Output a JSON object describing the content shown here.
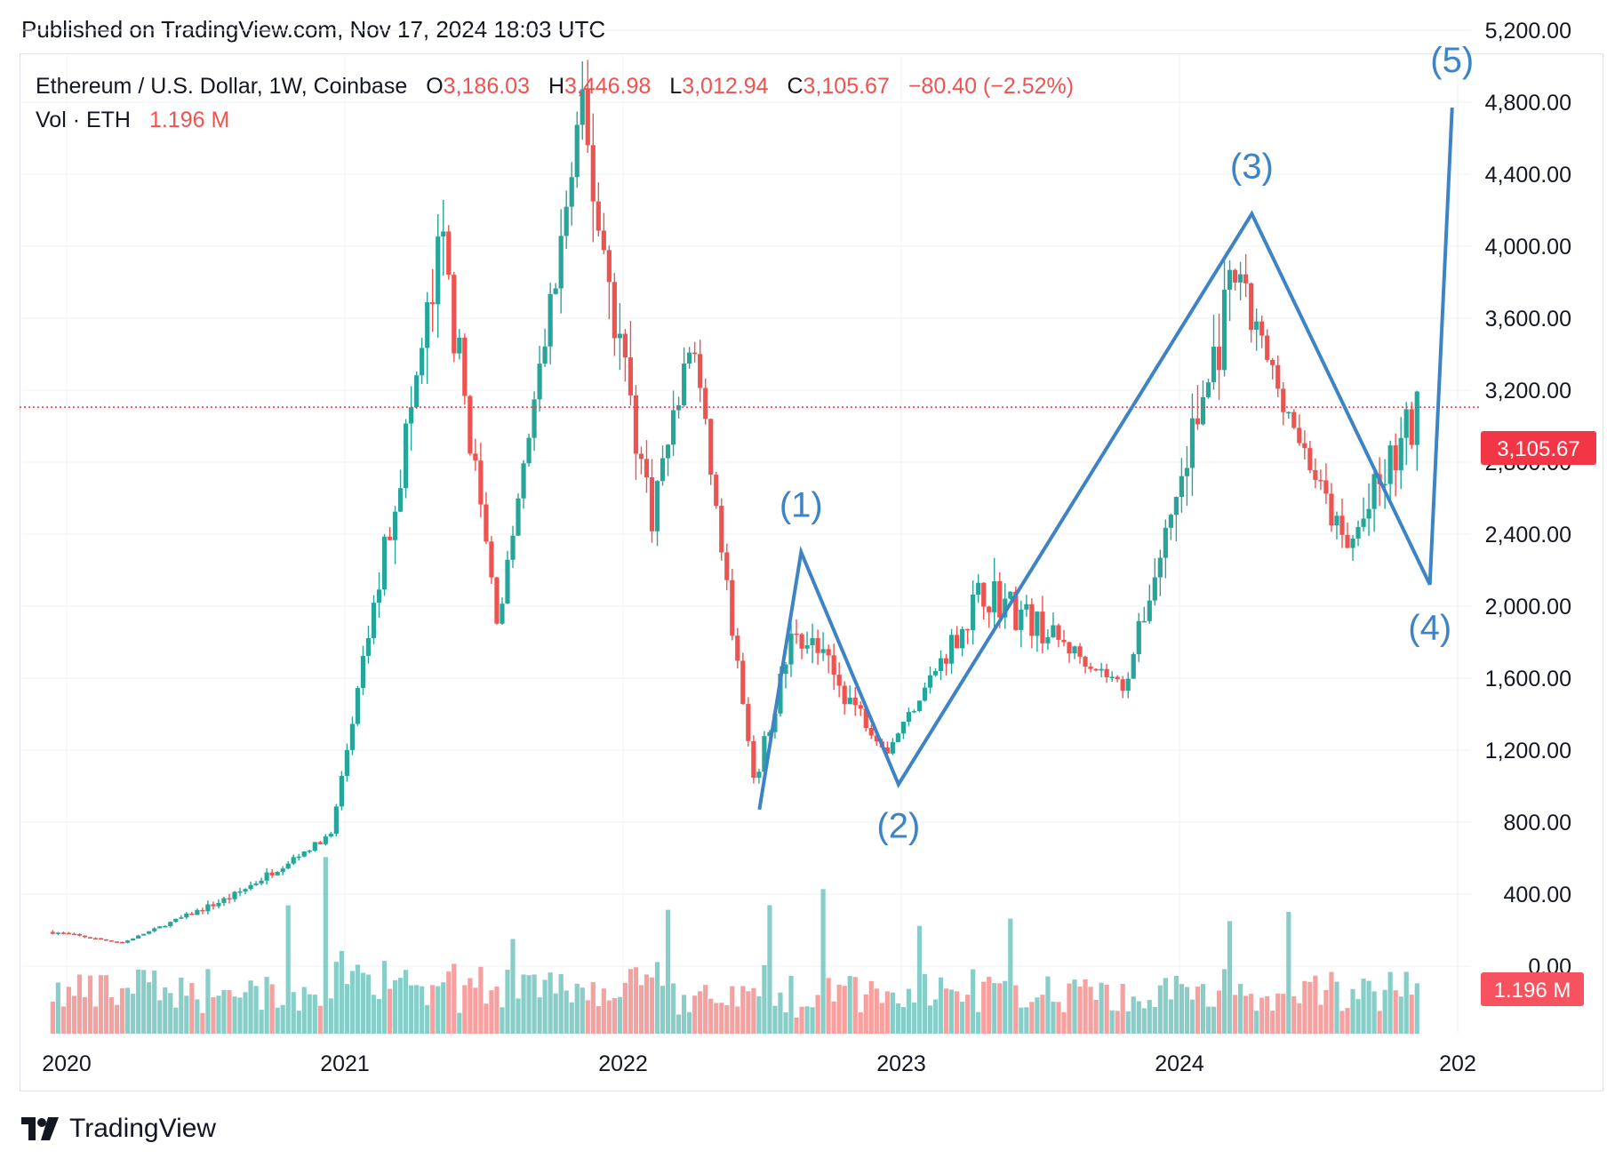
{
  "header": {
    "published": "Published on TradingView.com, Nov 17, 2024 18:03 UTC"
  },
  "legend": {
    "symbol": "Ethereum / U.S. Dollar, 1W, Coinbase",
    "open_label": "O",
    "open": "3,186.03",
    "high_label": "H",
    "high": "3,446.98",
    "low_label": "L",
    "low": "3,012.94",
    "close_label": "C",
    "close": "3,105.67",
    "change": "−80.40 (−2.52%)",
    "vol_label": "Vol · ETH",
    "vol_value": "1.196 M"
  },
  "price_tag": "3,105.67",
  "vol_tag": "1.196 M",
  "footer": {
    "logo_text": "TradingView"
  },
  "colors": {
    "up": "#26a69a",
    "down": "#ef5350",
    "wave": "#3d84c6",
    "grid": "#eef0f3",
    "tag": "#f23645"
  },
  "chart_data": {
    "type": "candlestick",
    "timeframe": "1W",
    "y_axis": {
      "ticks": [
        "5,200.00",
        "4,800.00",
        "4,400.00",
        "4,000.00",
        "3,600.00",
        "3,200.00",
        "2,800.00",
        "2,400.00",
        "2,000.00",
        "1,600.00",
        "1,200.00",
        "800.00",
        "400.00",
        "0.00"
      ],
      "ylim": [
        -400,
        5200
      ],
      "current_price": 3105.67
    },
    "x_axis": {
      "ticks": [
        "2020",
        "2021",
        "2022",
        "2023",
        "2024",
        "202"
      ]
    },
    "series": [
      {
        "name": "Ethereum / U.S. Dollar",
        "ohlc_keypoints": [
          {
            "t": 2019.95,
            "price": 190
          },
          {
            "t": 2020.2,
            "price": 130
          },
          {
            "t": 2020.6,
            "price": 390
          },
          {
            "t": 2020.95,
            "price": 730
          },
          {
            "t": 2021.35,
            "price": 4000
          },
          {
            "t": 2021.55,
            "price": 1900
          },
          {
            "t": 2021.85,
            "price": 4700
          },
          {
            "t": 2022.1,
            "price": 2500
          },
          {
            "t": 2022.25,
            "price": 3500
          },
          {
            "t": 2022.47,
            "price": 1000
          },
          {
            "t": 2022.62,
            "price": 1900
          },
          {
            "t": 2022.95,
            "price": 1200
          },
          {
            "t": 2023.3,
            "price": 2100
          },
          {
            "t": 2023.8,
            "price": 1550
          },
          {
            "t": 2024.2,
            "price": 3800
          },
          {
            "t": 2024.6,
            "price": 2300
          },
          {
            "t": 2024.87,
            "price": 3105.67
          }
        ]
      },
      {
        "name": "Vol · ETH",
        "last": 1196000
      }
    ],
    "annotations": {
      "wave_labels": [
        "(1)",
        "(2)",
        "(3)",
        "(4)",
        "(5)"
      ],
      "wave_points": [
        {
          "t": 2022.49,
          "price": 870
        },
        {
          "t": 2022.64,
          "price": 2300
        },
        {
          "t": 2022.99,
          "price": 1010
        },
        {
          "t": 2024.26,
          "price": 4180
        },
        {
          "t": 2024.9,
          "price": 2120
        },
        {
          "t": 2024.98,
          "price": 4770
        }
      ]
    }
  }
}
